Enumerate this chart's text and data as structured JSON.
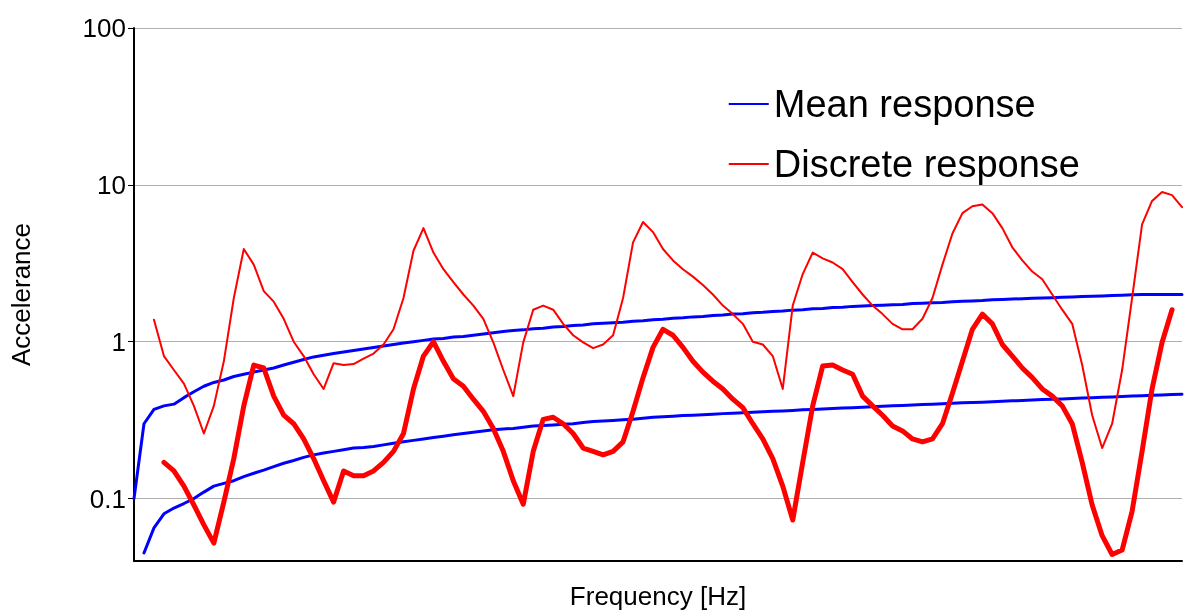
{
  "chart_data": {
    "type": "line",
    "xlabel": "Frequency [Hz]",
    "ylabel": "Accelerance",
    "log": "y",
    "grid": "y",
    "legend": "top right",
    "marker": "none",
    "line_style": "solid",
    "ylim": [
      0.04,
      100
    ],
    "yticks": [
      0.1,
      1,
      10,
      100
    ],
    "categories": [
      null,
      null,
      null,
      null,
      null,
      null,
      null,
      null,
      null,
      null,
      null,
      null,
      null,
      null,
      null,
      null,
      null,
      null,
      null,
      null,
      null,
      null,
      null,
      null,
      null,
      null,
      null,
      null,
      null,
      null,
      null,
      null,
      null,
      null,
      null,
      null,
      null,
      null,
      null,
      null,
      null,
      null,
      null,
      null,
      null,
      null,
      null,
      null,
      null,
      null,
      null,
      null,
      null,
      null,
      null,
      null,
      null,
      null,
      null,
      null,
      null,
      null,
      null,
      null,
      null,
      null,
      null,
      null,
      null,
      null,
      null,
      null,
      null,
      null,
      null,
      null,
      null,
      null,
      null,
      null,
      null,
      null,
      null,
      null,
      null,
      null,
      null,
      null,
      null,
      null,
      null,
      null,
      null,
      null,
      null,
      null,
      null,
      null,
      null,
      null,
      null,
      null,
      null,
      null,
      null,
      null
    ],
    "series": [
      {
        "name": "Mean response",
        "color": "#0000ff",
        "values": [
          0.1,
          0.3,
          0.37,
          0.39,
          0.4,
          0.44,
          0.48,
          0.52,
          0.55,
          0.57,
          0.6,
          0.62,
          0.64,
          0.66,
          0.68,
          0.71,
          0.74,
          0.77,
          0.8,
          0.82,
          0.84,
          0.86,
          0.88,
          0.9,
          0.92,
          0.94,
          0.96,
          0.98,
          1.0,
          1.02,
          1.04,
          1.05,
          1.07,
          1.08,
          1.1,
          1.12,
          1.14,
          1.16,
          1.18,
          1.19,
          1.21,
          1.22,
          1.24,
          1.25,
          1.27,
          1.28,
          1.3,
          1.31,
          1.32,
          1.33,
          1.35,
          1.36,
          1.38,
          1.39,
          1.41,
          1.42,
          1.44,
          1.45,
          1.47,
          1.48,
          1.5,
          1.51,
          1.53,
          1.54,
          1.56,
          1.57,
          1.59,
          1.6,
          1.62,
          1.63,
          1.65,
          1.66,
          1.68,
          1.69,
          1.7,
          1.71,
          1.72,
          1.73,
          1.75,
          1.76,
          1.77,
          1.78,
          1.8,
          1.81,
          1.82,
          1.83,
          1.85,
          1.86,
          1.87,
          1.88,
          1.89,
          1.9,
          1.91,
          1.92,
          1.93,
          1.94,
          1.95,
          1.96,
          1.97,
          1.98,
          1.99,
          2.0,
          2.0,
          2.0,
          2.0,
          2.0
        ]
      },
      {
        "color": "#0000ff",
        "values": [
          null,
          0.045,
          0.065,
          0.08,
          0.087,
          0.093,
          0.1,
          0.11,
          0.12,
          0.125,
          0.13,
          0.138,
          0.145,
          0.152,
          0.16,
          0.168,
          0.175,
          0.183,
          0.19,
          0.195,
          0.2,
          0.205,
          0.21,
          0.212,
          0.215,
          0.22,
          0.225,
          0.23,
          0.235,
          0.24,
          0.245,
          0.25,
          0.255,
          0.26,
          0.265,
          0.27,
          0.275,
          0.278,
          0.28,
          0.285,
          0.29,
          0.292,
          0.295,
          0.298,
          0.3,
          0.305,
          0.31,
          0.312,
          0.315,
          0.318,
          0.32,
          0.325,
          0.33,
          0.332,
          0.335,
          0.338,
          0.34,
          0.342,
          0.345,
          0.348,
          0.35,
          0.352,
          0.355,
          0.358,
          0.36,
          0.362,
          0.365,
          0.368,
          0.37,
          0.372,
          0.375,
          0.378,
          0.38,
          0.382,
          0.385,
          0.388,
          0.39,
          0.392,
          0.395,
          0.398,
          0.4,
          0.402,
          0.405,
          0.408,
          0.41,
          0.412,
          0.415,
          0.418,
          0.42,
          0.422,
          0.425,
          0.428,
          0.43,
          0.432,
          0.435,
          0.438,
          0.44,
          0.442,
          0.445,
          0.448,
          0.45,
          0.452,
          0.455,
          0.458,
          0.46,
          0.462
        ]
      },
      {
        "name": "Discrete response",
        "color": "#ff0000",
        "values": [
          null,
          null,
          1.38,
          0.81,
          0.66,
          0.54,
          0.39,
          0.26,
          0.39,
          0.75,
          1.9,
          3.9,
          3.1,
          2.1,
          1.8,
          1.4,
          1.0,
          0.81,
          0.62,
          0.5,
          0.73,
          0.71,
          0.72,
          0.78,
          0.84,
          0.96,
          1.2,
          1.9,
          3.8,
          5.3,
          3.7,
          2.9,
          2.4,
          2.0,
          1.7,
          1.4,
          0.99,
          0.66,
          0.45,
          0.99,
          1.6,
          1.7,
          1.6,
          1.3,
          1.1,
          0.99,
          0.91,
          0.96,
          1.1,
          1.9,
          4.3,
          5.8,
          5.0,
          3.9,
          3.3,
          2.9,
          2.6,
          2.3,
          2.0,
          1.7,
          1.5,
          1.3,
          1.0,
          0.96,
          0.81,
          0.5,
          1.7,
          2.7,
          3.7,
          3.4,
          3.2,
          2.9,
          2.4,
          2.0,
          1.7,
          1.5,
          1.3,
          1.2,
          1.2,
          1.4,
          1.9,
          3.1,
          4.9,
          6.6,
          7.3,
          7.5,
          6.6,
          5.3,
          4.0,
          3.3,
          2.8,
          2.5,
          2.0,
          1.6,
          1.3,
          0.71,
          0.34,
          0.21,
          0.3,
          0.66,
          1.9,
          5.6,
          7.9,
          9.0,
          8.6,
          7.2
        ]
      },
      {
        "color": "#ff0000",
        "values": [
          null,
          null,
          null,
          0.17,
          0.15,
          0.12,
          0.091,
          0.068,
          0.052,
          0.095,
          0.18,
          0.39,
          0.71,
          0.68,
          0.45,
          0.34,
          0.3,
          0.24,
          0.18,
          0.13,
          0.095,
          0.15,
          0.14,
          0.14,
          0.15,
          0.17,
          0.2,
          0.26,
          0.5,
          0.81,
          1.0,
          0.75,
          0.58,
          0.52,
          0.43,
          0.36,
          0.28,
          0.2,
          0.13,
          0.092,
          0.2,
          0.32,
          0.33,
          0.3,
          0.26,
          0.21,
          0.2,
          0.19,
          0.2,
          0.23,
          0.36,
          0.59,
          0.92,
          1.2,
          1.1,
          0.92,
          0.75,
          0.64,
          0.56,
          0.5,
          0.43,
          0.38,
          0.3,
          0.24,
          0.18,
          0.12,
          0.073,
          0.17,
          0.39,
          0.7,
          0.71,
          0.66,
          0.62,
          0.45,
          0.39,
          0.34,
          0.29,
          0.27,
          0.24,
          0.23,
          0.24,
          0.3,
          0.47,
          0.75,
          1.2,
          1.5,
          1.3,
          0.96,
          0.81,
          0.68,
          0.59,
          0.5,
          0.45,
          0.39,
          0.3,
          0.17,
          0.091,
          0.058,
          0.044,
          0.047,
          0.083,
          0.2,
          0.5,
          0.99,
          1.6,
          null
        ]
      }
    ]
  }
}
